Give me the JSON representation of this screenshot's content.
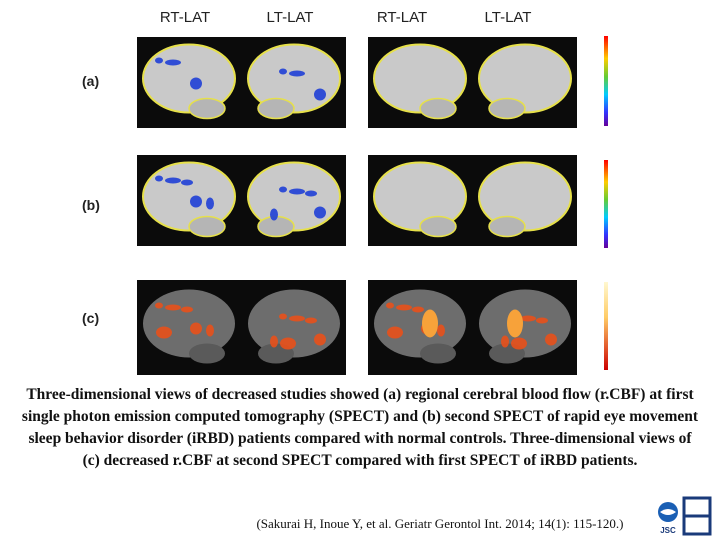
{
  "column_headers": [
    "RT-LAT",
    "LT-LAT",
    "RT-LAT",
    "LT-LAT"
  ],
  "row_labels": [
    "(a)",
    "(b)",
    "(c)"
  ],
  "caption": "Three-dimensional views of decreased studies showed (a) regional cerebral blood flow (r.CBF) at first single photon emission computed tomography (SPECT) and (b) second SPECT of rapid eye movement sleep behavior disorder (iRBD) patients compared with normal controls. Three-dimensional views of (c) decreased r.CBF at second SPECT compared with first SPECT of iRBD patients.",
  "citation": "(Sakurai H, Inoue Y, et al. Geriatr Gerontol Int. 2014; 14(1): 115-120.)",
  "logo": {
    "text": "JSC"
  }
}
